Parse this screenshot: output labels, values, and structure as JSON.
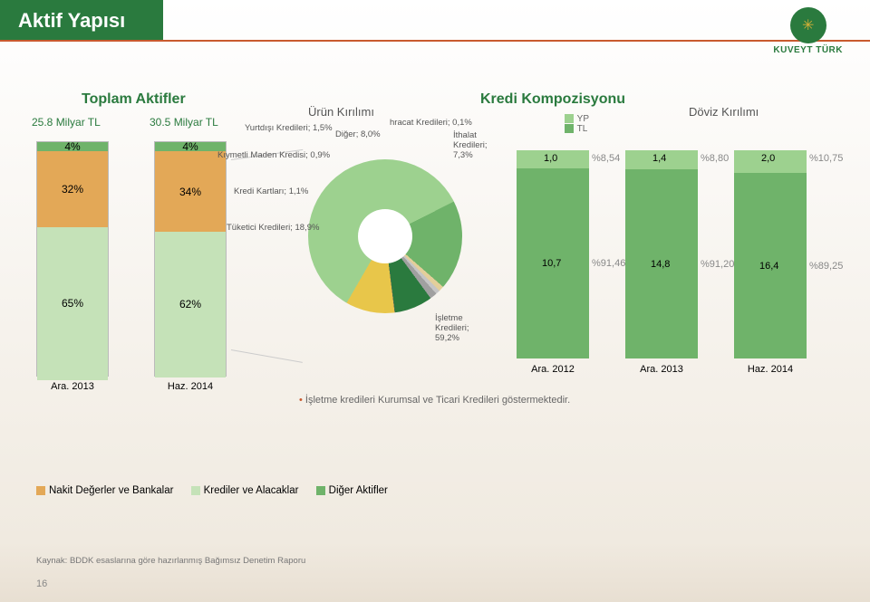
{
  "page": {
    "title": "Aktif Yapısı",
    "logo_text": "KUVEYT TÜRK",
    "page_number": "16",
    "source": "Kaynak: BDDK esaslarına göre hazırlanmış Bağımsız Denetim Raporu",
    "footnote_bullet": "•",
    "footnote": "İşletme kredileri Kurumsal ve Ticari Kredileri göstermektedir."
  },
  "totals": {
    "title": "Toplam Aktifler",
    "bars": [
      {
        "total_label": "25.8 Milyar TL",
        "xlabel": "Ara. 2013",
        "segments": [
          {
            "label": "4%",
            "pct": 4,
            "color": "#6fb36a"
          },
          {
            "label": "32%",
            "pct": 32,
            "color": "#e3a857"
          },
          {
            "label": "65%",
            "pct": 65,
            "color": "#c5e2b8"
          }
        ]
      },
      {
        "total_label": "30.5 Milyar TL",
        "xlabel": "Haz. 2014",
        "segments": [
          {
            "label": "4%",
            "pct": 4,
            "color": "#6fb36a"
          },
          {
            "label": "34%",
            "pct": 34,
            "color": "#e3a857"
          },
          {
            "label": "62%",
            "pct": 62,
            "color": "#c5e2b8"
          }
        ]
      }
    ]
  },
  "pie": {
    "title": "Ürün Kırılımı",
    "overall_title": "Kredi Kompozisyonu",
    "slices": [
      {
        "label": "İşletme Kredileri;\n59,2%",
        "pct": 59.2,
        "color": "#9dd18f"
      },
      {
        "label": "Tüketici Kredileri;\n18,9%",
        "pct": 18.9,
        "color": "#6fb36a"
      },
      {
        "label": "Kredi Kartları;\n1,1%",
        "pct": 1.1,
        "color": "#e3cf9a"
      },
      {
        "label": "Kıymetli Maden\nKredisi; 0,9%",
        "pct": 0.9,
        "color": "#c5c5c5"
      },
      {
        "label": "Yurtdışı Kredileri;\n1,5%",
        "pct": 1.5,
        "color": "#a0a0a0"
      },
      {
        "label": "Diğer; 8,0%",
        "pct": 8.0,
        "color": "#2a7a3e"
      },
      {
        "label": "hracat Kredileri; 0,1%",
        "pct": 0.1,
        "color": "#666666"
      },
      {
        "label": "İthalat Kredileri;\n7,3%",
        "pct": 7.3,
        "color": "#e8c64a"
      }
    ],
    "dark_green": "#2a7a3e",
    "green": "#6fb36a",
    "light_green": "#9dd18f",
    "yellow": "#e8c64a",
    "tan": "#e3cf9a",
    "gray": "#c5c5c5",
    "dgray": "#a0a0a0"
  },
  "currency": {
    "title": "Döviz Kırılımı",
    "legend": [
      {
        "label": "YP",
        "color": "#9dd18f"
      },
      {
        "label": "TL",
        "color": "#6fb36a"
      }
    ],
    "pct_color": "#888",
    "bars": [
      {
        "xlabel": "Ara. 2012",
        "top": {
          "val": "1,0",
          "pct": "%8,54",
          "color": "#9dd18f"
        },
        "bot": {
          "val": "10,7",
          "pct": "%91,46",
          "color": "#6fb36a"
        },
        "top_h": 20,
        "bot_h": 210
      },
      {
        "xlabel": "Ara. 2013",
        "top": {
          "val": "1,4",
          "pct": "%8,80",
          "color": "#9dd18f"
        },
        "bot": {
          "val": "14,8",
          "pct": "%91,20",
          "color": "#6fb36a"
        },
        "top_h": 21,
        "bot_h": 209
      },
      {
        "xlabel": "Haz. 2014",
        "top": {
          "val": "2,0",
          "pct": "%10,75",
          "color": "#9dd18f"
        },
        "bot": {
          "val": "16,4",
          "pct": "%89,25",
          "color": "#6fb36a"
        },
        "top_h": 25,
        "bot_h": 205
      }
    ]
  },
  "legend": {
    "items": [
      {
        "label": "Nakit Değerler ve Bankalar",
        "color": "#e3a857"
      },
      {
        "label": "Krediler ve Alacaklar",
        "color": "#c5e2b8"
      },
      {
        "label": "Diğer Aktifler",
        "color": "#6fb36a"
      }
    ]
  }
}
